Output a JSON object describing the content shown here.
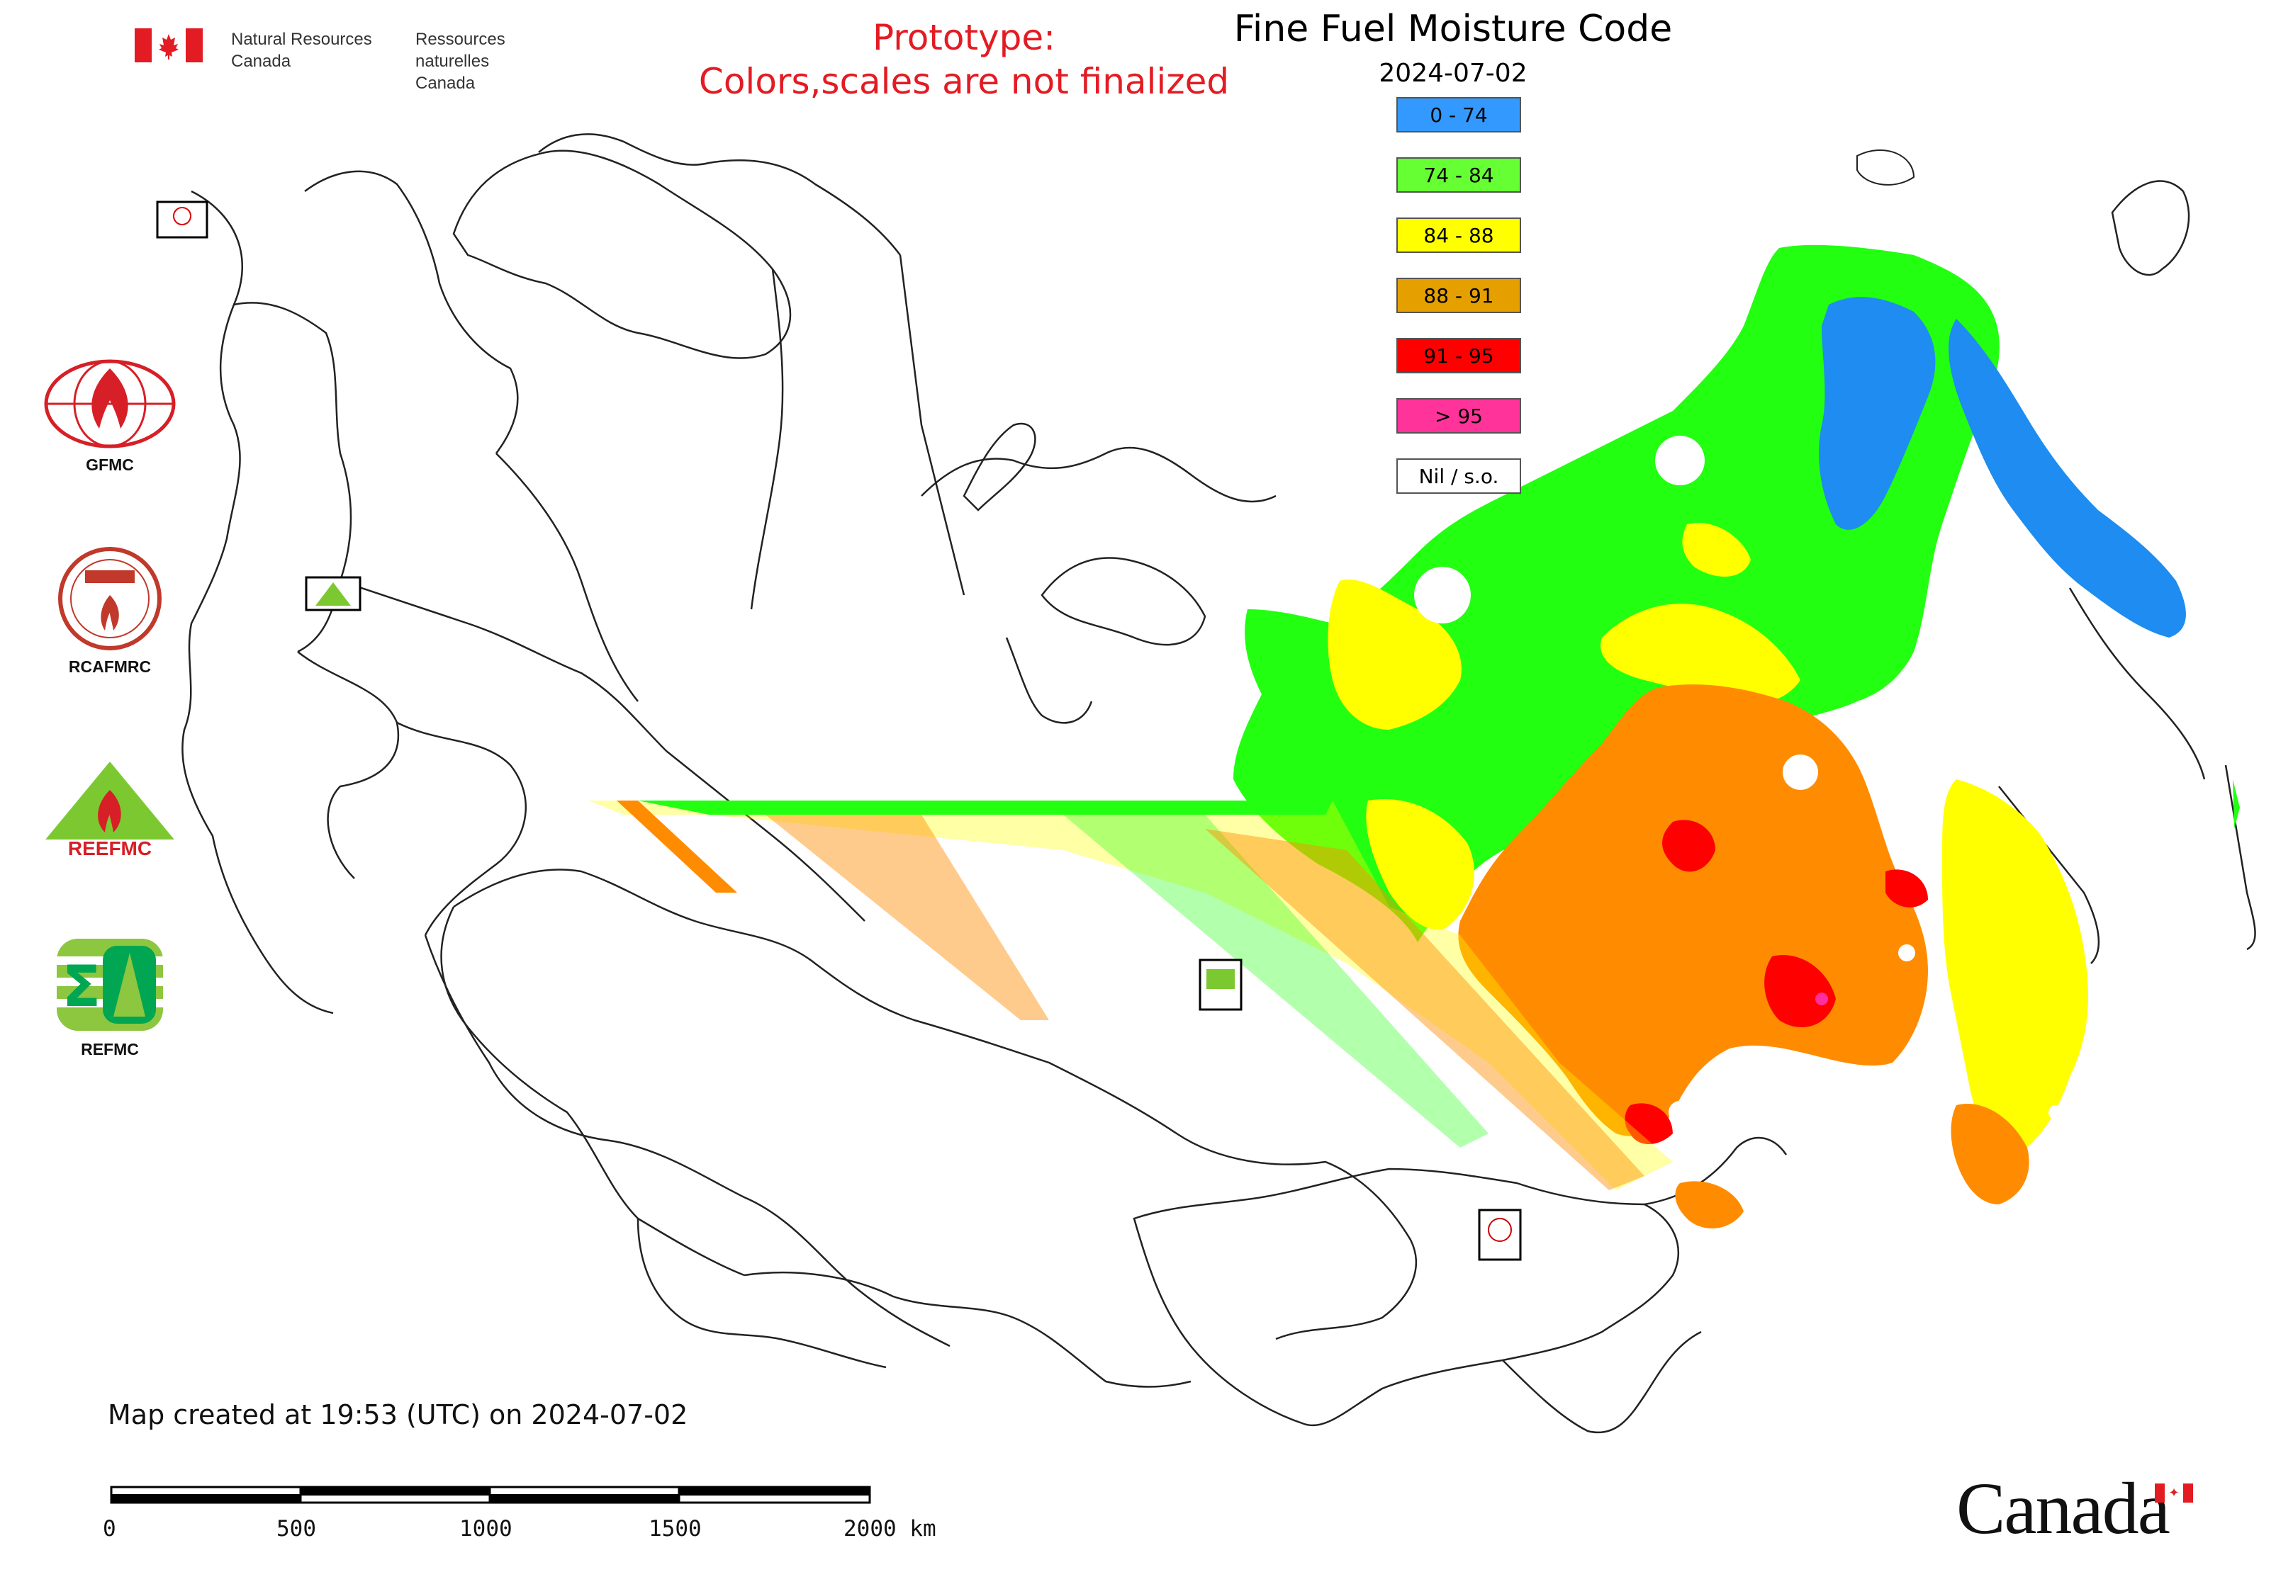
{
  "header": {
    "gov_en_line1": "Natural Resources",
    "gov_en_line2": "Canada",
    "gov_fr_line1": "Ressources naturelles",
    "gov_fr_line2": "Canada",
    "prototype_line1": "Prototype:",
    "prototype_line2": "Colors,scales are not finalized"
  },
  "map": {
    "title": "Fine Fuel Moisture Code",
    "date": "2024-07-02",
    "legend": [
      {
        "label": "0 - 74",
        "color": "#3399ff"
      },
      {
        "label": "74 - 84",
        "color": "#66ff33"
      },
      {
        "label": "84 - 88",
        "color": "#ffff00"
      },
      {
        "label": "88 - 91",
        "color": "#e5a000"
      },
      {
        "label": "91 - 95",
        "color": "#ff0000"
      },
      {
        "label": "> 95",
        "color": "#ff3399"
      },
      {
        "label": "Nil / s.o.",
        "color": "#ffffff"
      }
    ],
    "colors": {
      "class_0_74": "#1e8cf0",
      "class_74_84": "#22ff11",
      "class_84_88": "#ffff00",
      "class_88_91": "#ff8c00",
      "class_91_95": "#ff0000",
      "class_gt_95": "#ff2fa0",
      "boundary": "#222222"
    }
  },
  "sidebar_logos": [
    {
      "name": "GFMC",
      "icon": "gfmc-logo-icon"
    },
    {
      "name": "RCAFMRC",
      "icon": "rcafmrc-logo-icon"
    },
    {
      "name": "REEFMC",
      "icon": "reefmc-logo-icon"
    },
    {
      "name": "REFMC",
      "icon": "refmc-logo-icon"
    }
  ],
  "footer": {
    "created": "Map created at 19:53 (UTC) on 2024-07-02",
    "scale_labels": [
      "0",
      "500",
      "1000",
      "1500",
      "2000 km"
    ],
    "wordmark": "Canada"
  }
}
